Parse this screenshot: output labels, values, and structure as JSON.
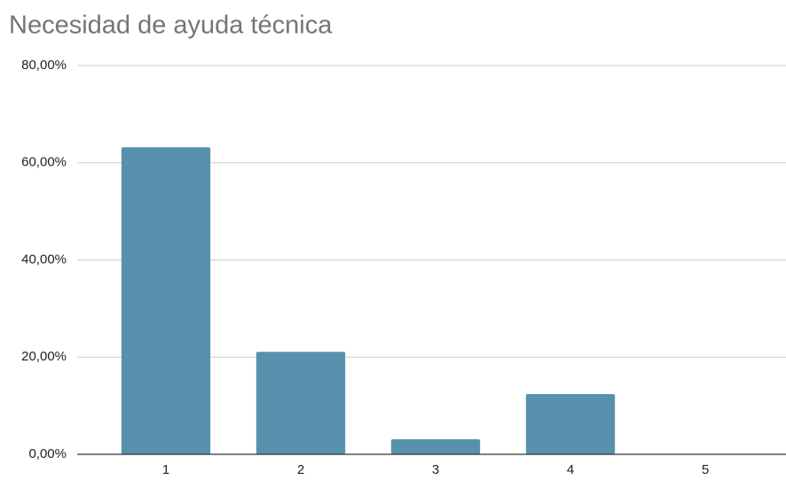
{
  "chart_data": {
    "type": "bar",
    "title": "Necesidad de ayuda técnica",
    "categories": [
      "1",
      "2",
      "3",
      "4",
      "5"
    ],
    "values": [
      63.2,
      21.1,
      3.1,
      12.4,
      0
    ],
    "color": "#5891ad",
    "ylim": [
      0,
      80
    ],
    "yticks": [
      {
        "value": 0,
        "label": "0,00%"
      },
      {
        "value": 20,
        "label": "20,00%"
      },
      {
        "value": 40,
        "label": "40,00%"
      },
      {
        "value": 60,
        "label": "60,00%"
      },
      {
        "value": 80,
        "label": "80,00%"
      }
    ],
    "grid": true
  }
}
